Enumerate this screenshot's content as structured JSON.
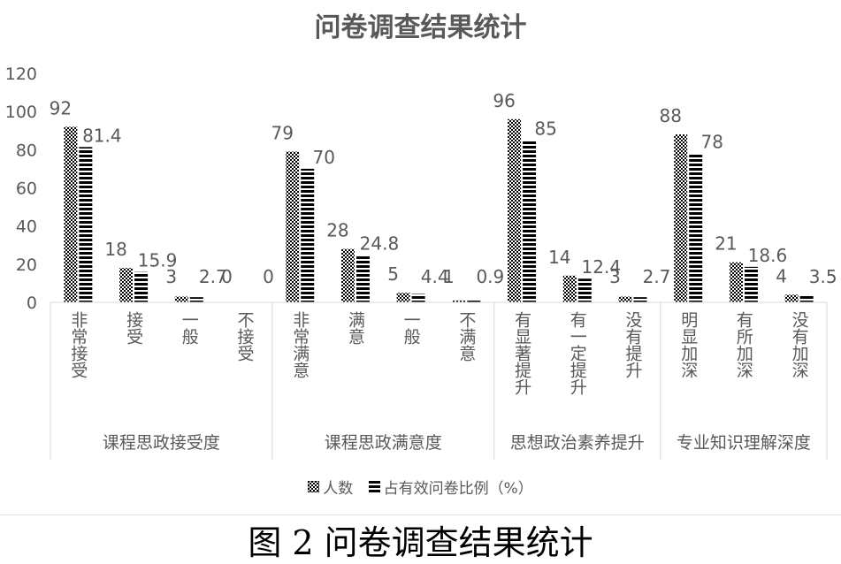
{
  "title": "问卷调查结果统计",
  "caption": "图 2 问卷调查结果统计",
  "legend": {
    "series1": "人数",
    "series2": "占有效问卷比例（%）"
  },
  "colors": {
    "text": "#595959",
    "bar": "#000000",
    "axis": "#d9d9d9"
  },
  "chart_data": {
    "type": "bar",
    "title": "问卷调查结果统计",
    "ylim": [
      0,
      120
    ],
    "yticks": [
      0,
      20,
      40,
      60,
      80,
      100,
      120
    ],
    "grid": false,
    "legend_position": "bottom",
    "groups": [
      {
        "name": "课程思政接受度",
        "categories": [
          "非常接受",
          "接受",
          "一般",
          "不接受"
        ]
      },
      {
        "name": "课程思政满意度",
        "categories": [
          "非常满意",
          "满意",
          "一般",
          "不满意"
        ]
      },
      {
        "name": "思想政治素养提升",
        "categories": [
          "有显著提升",
          "有一定提升",
          "没有提升"
        ]
      },
      {
        "name": "专业知识理解深度",
        "categories": [
          "明显加深",
          "有所加深",
          "没有加深"
        ]
      }
    ],
    "series": [
      {
        "name": "人数",
        "pattern": "checker",
        "values": [
          92,
          18,
          3,
          0,
          79,
          28,
          5,
          1,
          96,
          14,
          3,
          88,
          21,
          4
        ],
        "labels": [
          "92",
          "18",
          "3",
          "0",
          "79",
          "28",
          "5",
          "1",
          "96",
          "14",
          "3",
          "88",
          "21",
          "4"
        ]
      },
      {
        "name": "占有效问卷比例（%）",
        "pattern": "stripes",
        "values": [
          81.4,
          15.9,
          2.7,
          0,
          70,
          24.8,
          4.4,
          0.9,
          85,
          12.4,
          2.7,
          78,
          18.6,
          3.5
        ],
        "labels": [
          "81.4",
          "15.9",
          "2.7",
          "0",
          "70",
          "24.8",
          "4.4",
          "0.9",
          "85",
          "12.4",
          "2.7",
          "78",
          "18.6",
          "3.5"
        ]
      }
    ]
  }
}
